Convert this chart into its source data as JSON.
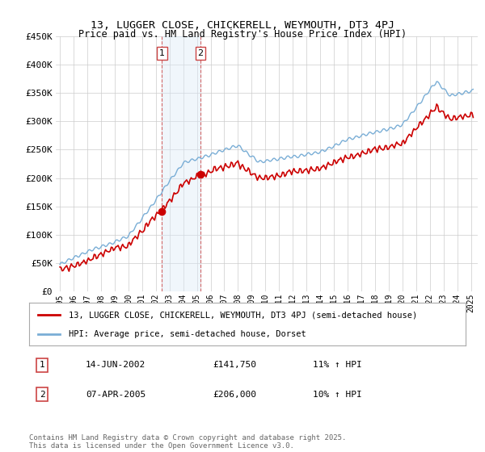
{
  "title": "13, LUGGER CLOSE, CHICKERELL, WEYMOUTH, DT3 4PJ",
  "subtitle": "Price paid vs. HM Land Registry's House Price Index (HPI)",
  "legend_label_red": "13, LUGGER CLOSE, CHICKERELL, WEYMOUTH, DT3 4PJ (semi-detached house)",
  "legend_label_blue": "HPI: Average price, semi-detached house, Dorset",
  "footnote": "Contains HM Land Registry data © Crown copyright and database right 2025.\nThis data is licensed under the Open Government Licence v3.0.",
  "purchase1_label": "1",
  "purchase1_date": "14-JUN-2002",
  "purchase1_price": "£141,750",
  "purchase1_hpi": "11% ↑ HPI",
  "purchase2_label": "2",
  "purchase2_date": "07-APR-2005",
  "purchase2_price": "£206,000",
  "purchase2_hpi": "10% ↑ HPI",
  "ylim": [
    0,
    450000
  ],
  "xlim_start": 1994.7,
  "xlim_end": 2025.5,
  "marker1_x": 2002.45,
  "marker1_y": 141750,
  "marker2_x": 2005.27,
  "marker2_y": 206000,
  "shade_x1": 2002.45,
  "shade_x2": 2005.27,
  "red_color": "#cc0000",
  "blue_color": "#7aaed6",
  "shade_color": "#daeaf7",
  "background_color": "#ffffff",
  "grid_color": "#cccccc"
}
